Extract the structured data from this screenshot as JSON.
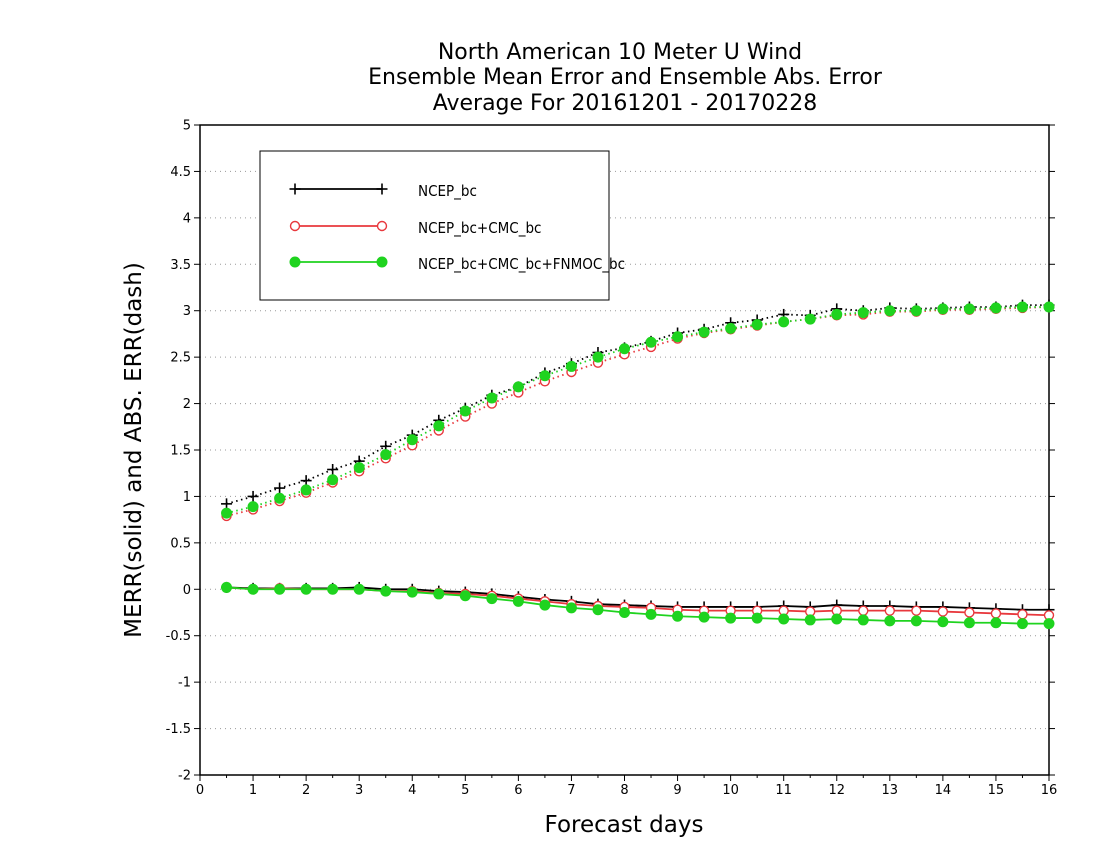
{
  "chart_data": {
    "type": "line",
    "title": [
      "North American 10 Meter U Wind",
      "Ensemble Mean Error and Ensemble Abs. Error",
      "Average For 20161201 - 20170228"
    ],
    "xlabel": "Forecast days",
    "ylabel": "MERR(solid) and ABS. ERR(dash)",
    "xlim": [
      0,
      16
    ],
    "ylim": [
      -2,
      5
    ],
    "xticks": [
      0,
      1,
      2,
      3,
      4,
      5,
      6,
      7,
      8,
      9,
      10,
      11,
      12,
      13,
      14,
      15,
      16
    ],
    "yticks": [
      -2,
      -1.5,
      -1,
      -0.5,
      0,
      0.5,
      1,
      1.5,
      2,
      2.5,
      3,
      3.5,
      4,
      4.5,
      5
    ],
    "ytick_labels": [
      "-2",
      "-1.5",
      "-1",
      "-0.5",
      "0",
      "0.5",
      "1",
      "1.5",
      "2",
      "2.5",
      "3",
      "3.5",
      "4",
      "4.5",
      "5"
    ],
    "grid": "horizontal-dotted",
    "legend_position": "top-left",
    "x": [
      0.5,
      1,
      1.5,
      2,
      2.5,
      3,
      3.5,
      4,
      4.5,
      5,
      5.5,
      6,
      6.5,
      7,
      7.5,
      8,
      8.5,
      9,
      9.5,
      10,
      10.5,
      11,
      11.5,
      12,
      12.5,
      13,
      13.5,
      14,
      14.5,
      15,
      15.5,
      16
    ],
    "series": [
      {
        "name": "NCEP_bc",
        "color": "#000000",
        "marker": "plus",
        "merr": [
          0.02,
          0.01,
          0.01,
          0.01,
          0.01,
          0.02,
          0.0,
          0.0,
          -0.02,
          -0.03,
          -0.05,
          -0.08,
          -0.11,
          -0.13,
          -0.16,
          -0.17,
          -0.18,
          -0.19,
          -0.19,
          -0.19,
          -0.19,
          -0.18,
          -0.19,
          -0.17,
          -0.18,
          -0.18,
          -0.19,
          -0.19,
          -0.2,
          -0.21,
          -0.22,
          -0.22
        ],
        "abs_err": [
          0.92,
          1.0,
          1.09,
          1.17,
          1.29,
          1.38,
          1.54,
          1.66,
          1.82,
          1.95,
          2.09,
          2.18,
          2.33,
          2.43,
          2.55,
          2.6,
          2.67,
          2.76,
          2.8,
          2.87,
          2.9,
          2.96,
          2.95,
          3.02,
          3.0,
          3.03,
          3.02,
          3.03,
          3.04,
          3.04,
          3.06,
          3.06
        ]
      },
      {
        "name": "NCEP_bc+CMC_bc",
        "color": "#e8383d",
        "marker": "open-circle",
        "merr": [
          0.02,
          0.0,
          0.01,
          0.0,
          0.0,
          0.0,
          -0.02,
          -0.02,
          -0.04,
          -0.05,
          -0.07,
          -0.1,
          -0.13,
          -0.16,
          -0.18,
          -0.19,
          -0.2,
          -0.22,
          -0.23,
          -0.23,
          -0.23,
          -0.23,
          -0.24,
          -0.23,
          -0.23,
          -0.23,
          -0.23,
          -0.24,
          -0.25,
          -0.26,
          -0.27,
          -0.28
        ],
        "abs_err": [
          0.79,
          0.86,
          0.95,
          1.04,
          1.15,
          1.27,
          1.41,
          1.55,
          1.71,
          1.86,
          2.0,
          2.12,
          2.24,
          2.34,
          2.44,
          2.53,
          2.61,
          2.7,
          2.76,
          2.8,
          2.84,
          2.88,
          2.91,
          2.95,
          2.96,
          2.99,
          2.99,
          3.01,
          3.01,
          3.02,
          3.03,
          3.04
        ]
      },
      {
        "name": "NCEP_bc+CMC_bc+FNMOC_bc",
        "color": "#1fd31f",
        "marker": "filled-circle",
        "merr": [
          0.02,
          0.0,
          0.0,
          0.0,
          0.0,
          0.0,
          -0.02,
          -0.03,
          -0.05,
          -0.07,
          -0.1,
          -0.13,
          -0.17,
          -0.2,
          -0.22,
          -0.25,
          -0.27,
          -0.29,
          -0.3,
          -0.31,
          -0.31,
          -0.32,
          -0.33,
          -0.32,
          -0.33,
          -0.34,
          -0.34,
          -0.35,
          -0.36,
          -0.36,
          -0.37,
          -0.37
        ],
        "abs_err": [
          0.82,
          0.89,
          0.98,
          1.07,
          1.18,
          1.31,
          1.45,
          1.61,
          1.76,
          1.92,
          2.06,
          2.18,
          2.3,
          2.4,
          2.5,
          2.59,
          2.66,
          2.72,
          2.77,
          2.81,
          2.85,
          2.88,
          2.91,
          2.96,
          2.98,
          3.0,
          3.0,
          3.02,
          3.02,
          3.03,
          3.04,
          3.04
        ]
      }
    ]
  }
}
